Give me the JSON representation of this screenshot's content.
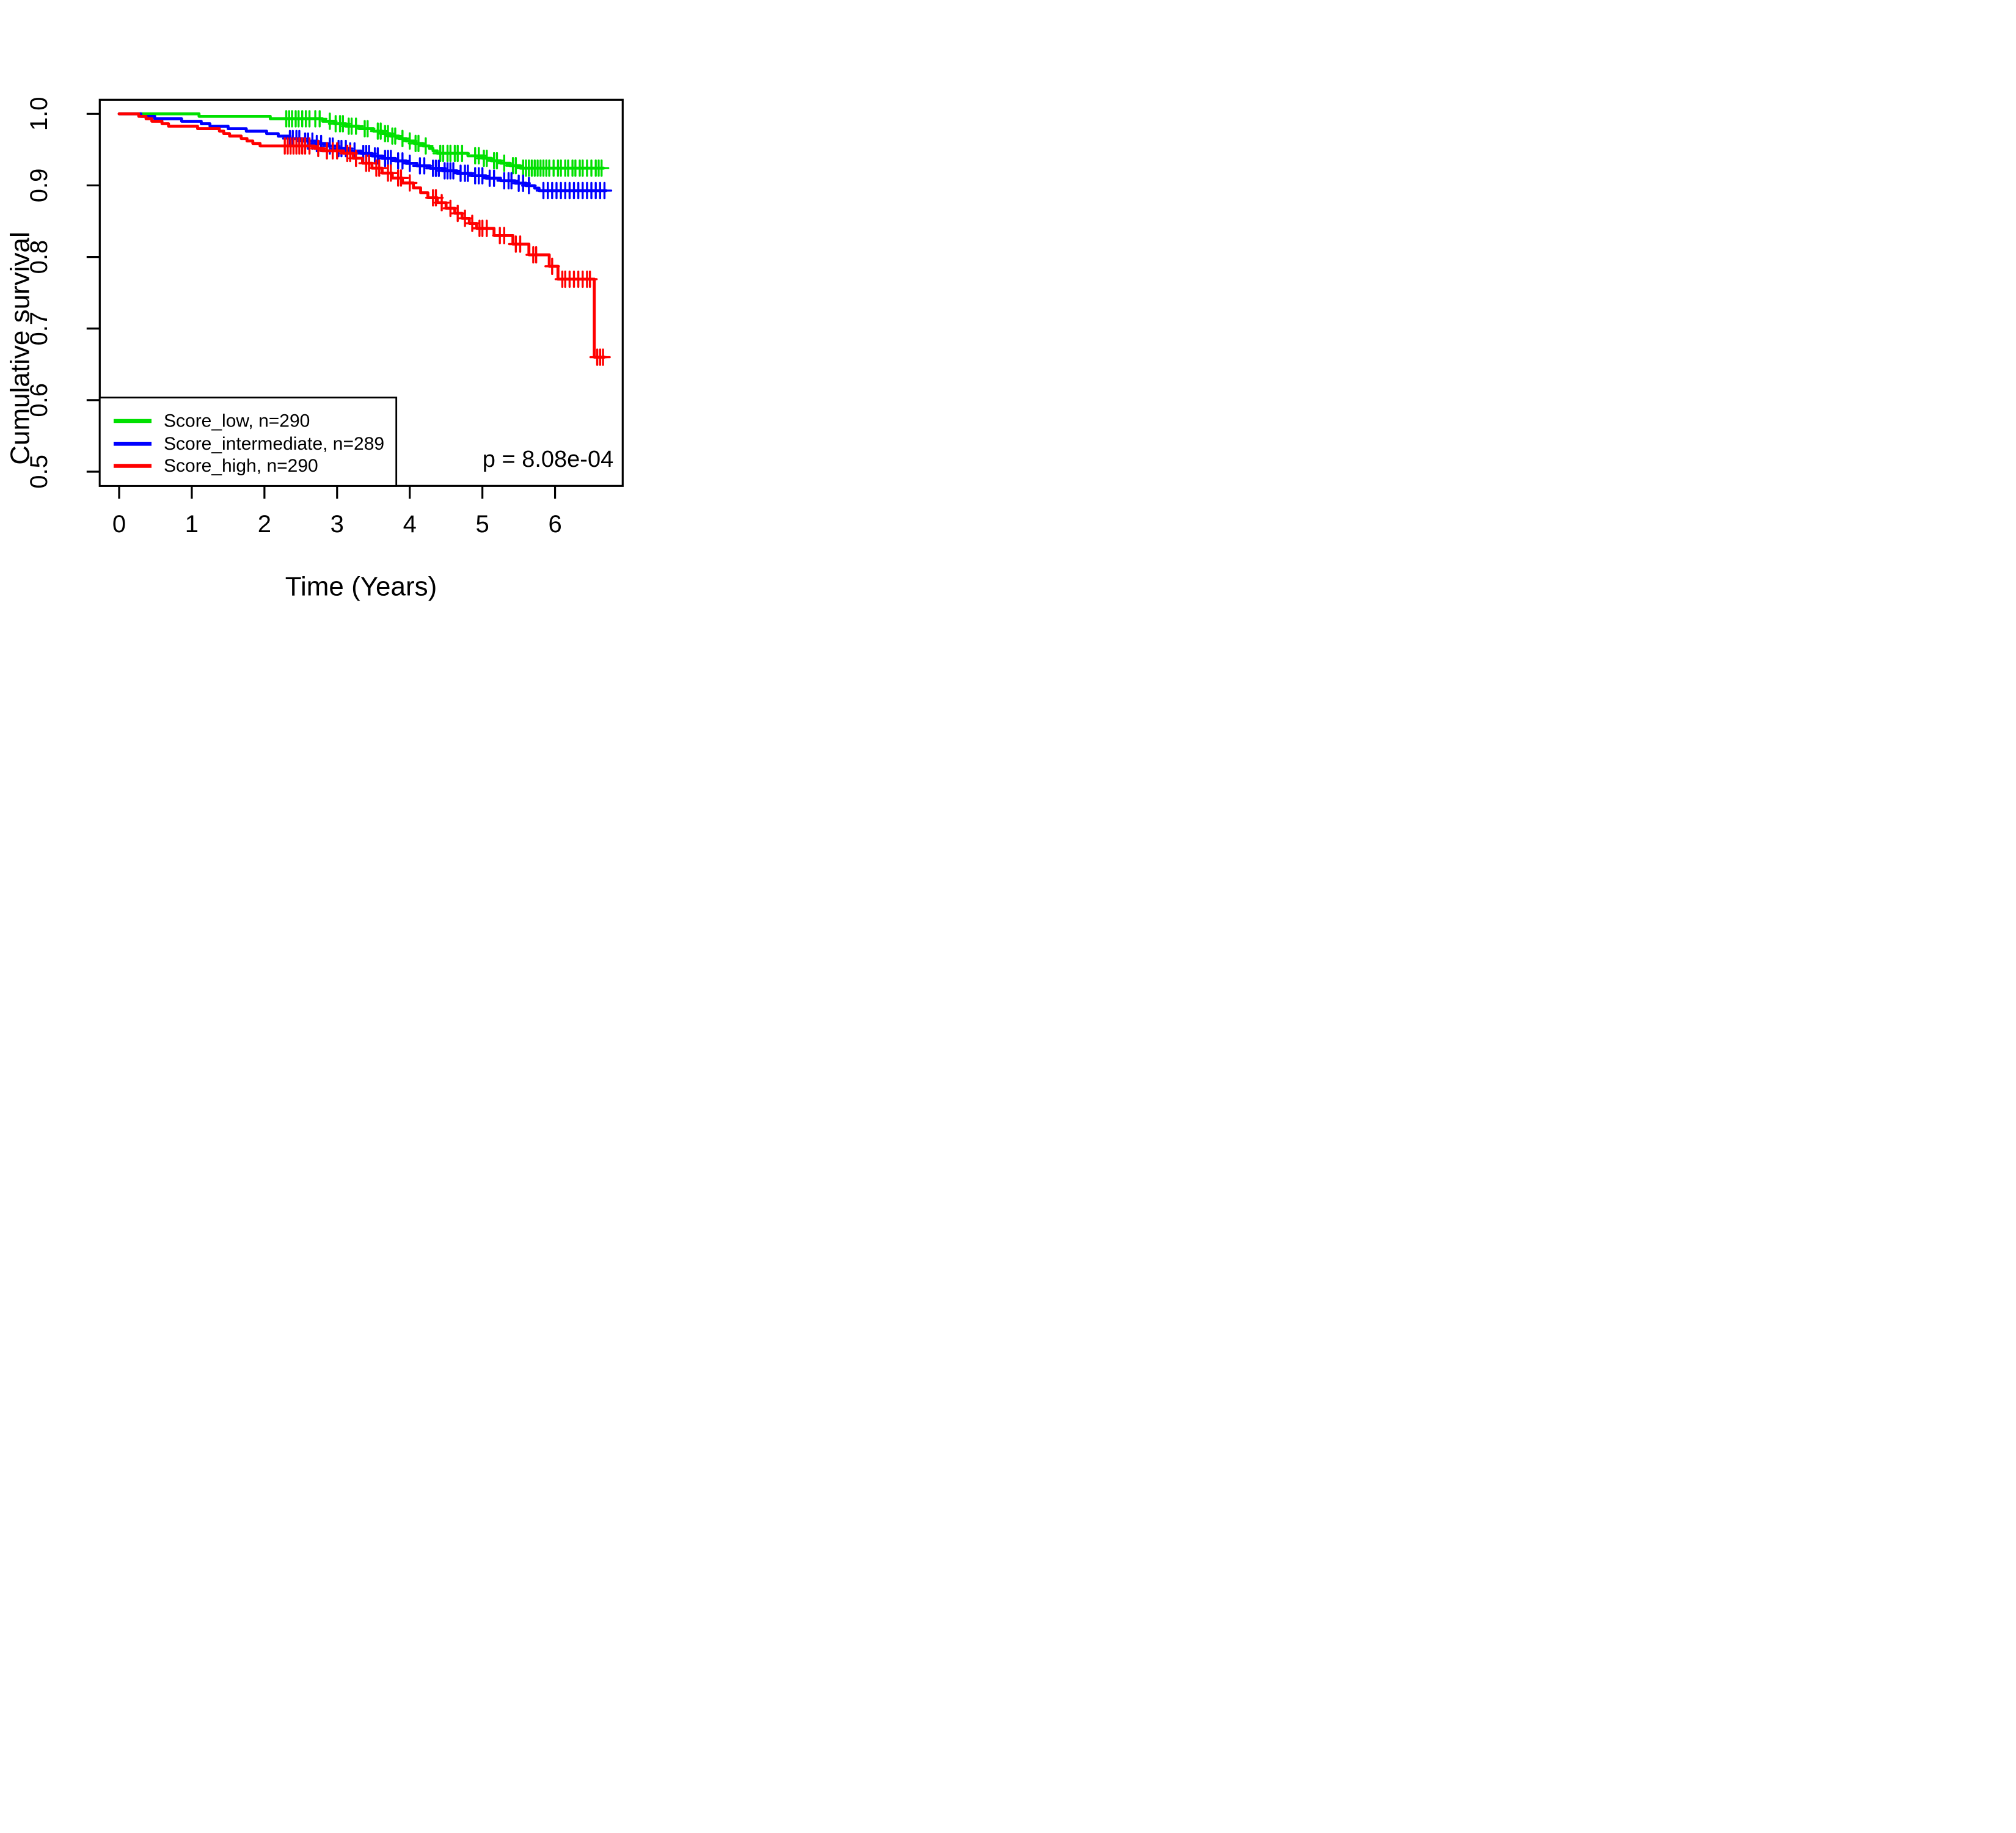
{
  "chart_data": {
    "type": "line",
    "subtype": "kaplan-meier-step-curves",
    "title": "",
    "xlabel": "Time (Years)",
    "ylabel": "Cumulative survival",
    "x_ticks": [
      0,
      1,
      2,
      3,
      4,
      5,
      6
    ],
    "y_ticks": [
      0.5,
      0.6,
      0.7,
      0.8,
      0.9,
      1.0
    ],
    "xlim": [
      -0.27,
      6.93
    ],
    "ylim": [
      0.48,
      1.02
    ],
    "grid": false,
    "legend_position": "bottom-left",
    "p_value_label": "p = 8.08e-04",
    "axis_color": "#000000",
    "series": [
      {
        "name": "Score_low",
        "label": "Score_low, n=290",
        "n": 290,
        "color": "#00E000",
        "start": [
          0,
          1.0
        ],
        "end_time": 6.67,
        "steps": [
          [
            1.1,
            0.99655
          ],
          [
            2.08,
            0.9931
          ],
          [
            2.8,
            0.98966
          ],
          [
            2.96,
            0.98621
          ],
          [
            3.12,
            0.98276
          ],
          [
            3.3,
            0.97931
          ],
          [
            3.5,
            0.97586
          ],
          [
            3.62,
            0.97241
          ],
          [
            3.73,
            0.96897
          ],
          [
            3.85,
            0.96552
          ],
          [
            3.95,
            0.96207
          ],
          [
            4.06,
            0.95862
          ],
          [
            4.18,
            0.95517
          ],
          [
            4.27,
            0.95172
          ],
          [
            4.32,
            0.94828
          ],
          [
            4.38,
            0.94483
          ],
          [
            4.8,
            0.94138
          ],
          [
            5.0,
            0.93793
          ],
          [
            5.12,
            0.93448
          ],
          [
            5.25,
            0.93103
          ],
          [
            5.38,
            0.92759
          ],
          [
            5.52,
            0.92414
          ]
        ],
        "censor_times": [
          2.3,
          2.34,
          2.38,
          2.43,
          2.47,
          2.52,
          2.57,
          2.62,
          2.7,
          2.76,
          2.9,
          2.98,
          3.04,
          3.08,
          3.16,
          3.2,
          3.26,
          3.38,
          3.42,
          3.56,
          3.6,
          3.66,
          3.7,
          3.76,
          3.8,
          3.9,
          4.0,
          4.08,
          4.12,
          4.22,
          4.42,
          4.46,
          4.52,
          4.56,
          4.62,
          4.66,
          4.72,
          4.9,
          4.95,
          5.02,
          5.06,
          5.16,
          5.2,
          5.3,
          5.42,
          5.46,
          5.56,
          5.6,
          5.64,
          5.68,
          5.72,
          5.76,
          5.8,
          5.84,
          5.88,
          5.92,
          5.98,
          6.04,
          6.08,
          6.14,
          6.18,
          6.24,
          6.28,
          6.34,
          6.38,
          6.44,
          6.5,
          6.56,
          6.6,
          6.64
        ]
      },
      {
        "name": "Score_intermediate",
        "label": "Score_intermediate, n=289",
        "n": 289,
        "color": "#0000FF",
        "start": [
          0,
          1.0
        ],
        "end_time": 6.7,
        "steps": [
          [
            0.3,
            0.99654
          ],
          [
            0.49,
            0.99308
          ],
          [
            0.86,
            0.98962
          ],
          [
            1.13,
            0.98616
          ],
          [
            1.25,
            0.9827
          ],
          [
            1.5,
            0.97924
          ],
          [
            1.75,
            0.97578
          ],
          [
            2.03,
            0.97232
          ],
          [
            2.19,
            0.96886
          ],
          [
            2.35,
            0.9654
          ],
          [
            2.53,
            0.96194
          ],
          [
            2.7,
            0.95848
          ],
          [
            2.87,
            0.95502
          ],
          [
            3.02,
            0.95156
          ],
          [
            3.17,
            0.9481
          ],
          [
            3.33,
            0.94464
          ],
          [
            3.48,
            0.94118
          ],
          [
            3.62,
            0.93772
          ],
          [
            3.8,
            0.93426
          ],
          [
            3.95,
            0.9308
          ],
          [
            4.1,
            0.92734
          ],
          [
            4.28,
            0.92388
          ],
          [
            4.45,
            0.92042
          ],
          [
            4.65,
            0.91696
          ],
          [
            4.85,
            0.9135
          ],
          [
            5.05,
            0.91003
          ],
          [
            5.25,
            0.90657
          ],
          [
            5.45,
            0.90311
          ],
          [
            5.6,
            0.89965
          ],
          [
            5.72,
            0.89619
          ],
          [
            5.78,
            0.89273
          ]
        ],
        "censor_times": [
          2.35,
          2.39,
          2.44,
          2.48,
          2.56,
          2.6,
          2.66,
          2.72,
          2.78,
          2.9,
          2.94,
          3.02,
          3.06,
          3.12,
          3.18,
          3.24,
          3.36,
          3.4,
          3.44,
          3.52,
          3.56,
          3.66,
          3.7,
          3.74,
          3.84,
          3.9,
          4.0,
          4.14,
          4.2,
          4.32,
          4.36,
          4.4,
          4.48,
          4.52,
          4.56,
          4.6,
          4.7,
          4.76,
          4.8,
          4.9,
          4.95,
          5.0,
          5.1,
          5.16,
          5.3,
          5.36,
          5.4,
          5.5,
          5.56,
          5.64,
          5.84,
          5.9,
          5.96,
          6.02,
          6.08,
          6.14,
          6.2,
          6.26,
          6.32,
          6.38,
          6.44,
          6.5,
          6.56,
          6.62,
          6.68
        ]
      },
      {
        "name": "Score_high",
        "label": "Score_high, n=290",
        "n": 290,
        "color": "#FF0000",
        "start": [
          0,
          1.0
        ],
        "end_time": 6.68,
        "steps": [
          [
            0.27,
            0.99655
          ],
          [
            0.37,
            0.9931
          ],
          [
            0.45,
            0.98966
          ],
          [
            0.59,
            0.98621
          ],
          [
            0.68,
            0.98276
          ],
          [
            1.08,
            0.97931
          ],
          [
            1.38,
            0.97586
          ],
          [
            1.44,
            0.97241
          ],
          [
            1.52,
            0.96897
          ],
          [
            1.68,
            0.96552
          ],
          [
            1.76,
            0.96207
          ],
          [
            1.84,
            0.95862
          ],
          [
            1.94,
            0.95517
          ],
          [
            2.69,
            0.95172
          ],
          [
            2.8,
            0.94828
          ],
          [
            3.09,
            0.94483
          ],
          [
            3.22,
            0.93793
          ],
          [
            3.35,
            0.93103
          ],
          [
            3.48,
            0.92414
          ],
          [
            3.62,
            0.91724
          ],
          [
            3.76,
            0.91034
          ],
          [
            3.9,
            0.90345
          ],
          [
            4.05,
            0.89655
          ],
          [
            4.15,
            0.88966
          ],
          [
            4.25,
            0.88276
          ],
          [
            4.38,
            0.87586
          ],
          [
            4.5,
            0.868
          ],
          [
            4.62,
            0.861
          ],
          [
            4.72,
            0.854
          ],
          [
            4.82,
            0.847
          ],
          [
            4.92,
            0.84
          ],
          [
            5.16,
            0.83
          ],
          [
            5.42,
            0.818
          ],
          [
            5.64,
            0.803
          ],
          [
            5.92,
            0.787
          ],
          [
            6.04,
            0.769
          ],
          [
            6.54,
            0.66
          ]
        ],
        "censor_times": [
          2.28,
          2.32,
          2.36,
          2.4,
          2.44,
          2.48,
          2.52,
          2.56,
          2.62,
          2.74,
          2.86,
          2.94,
          3.0,
          3.14,
          3.18,
          3.26,
          3.4,
          3.44,
          3.54,
          3.58,
          3.7,
          3.74,
          3.84,
          3.88,
          4.0,
          4.32,
          4.36,
          4.44,
          4.56,
          4.66,
          4.76,
          4.86,
          4.96,
          5.0,
          5.06,
          5.24,
          5.3,
          5.46,
          5.52,
          5.7,
          5.74,
          5.96,
          6.1,
          6.14,
          6.2,
          6.26,
          6.32,
          6.38,
          6.44,
          6.48,
          6.58,
          6.62,
          6.66
        ]
      }
    ]
  }
}
